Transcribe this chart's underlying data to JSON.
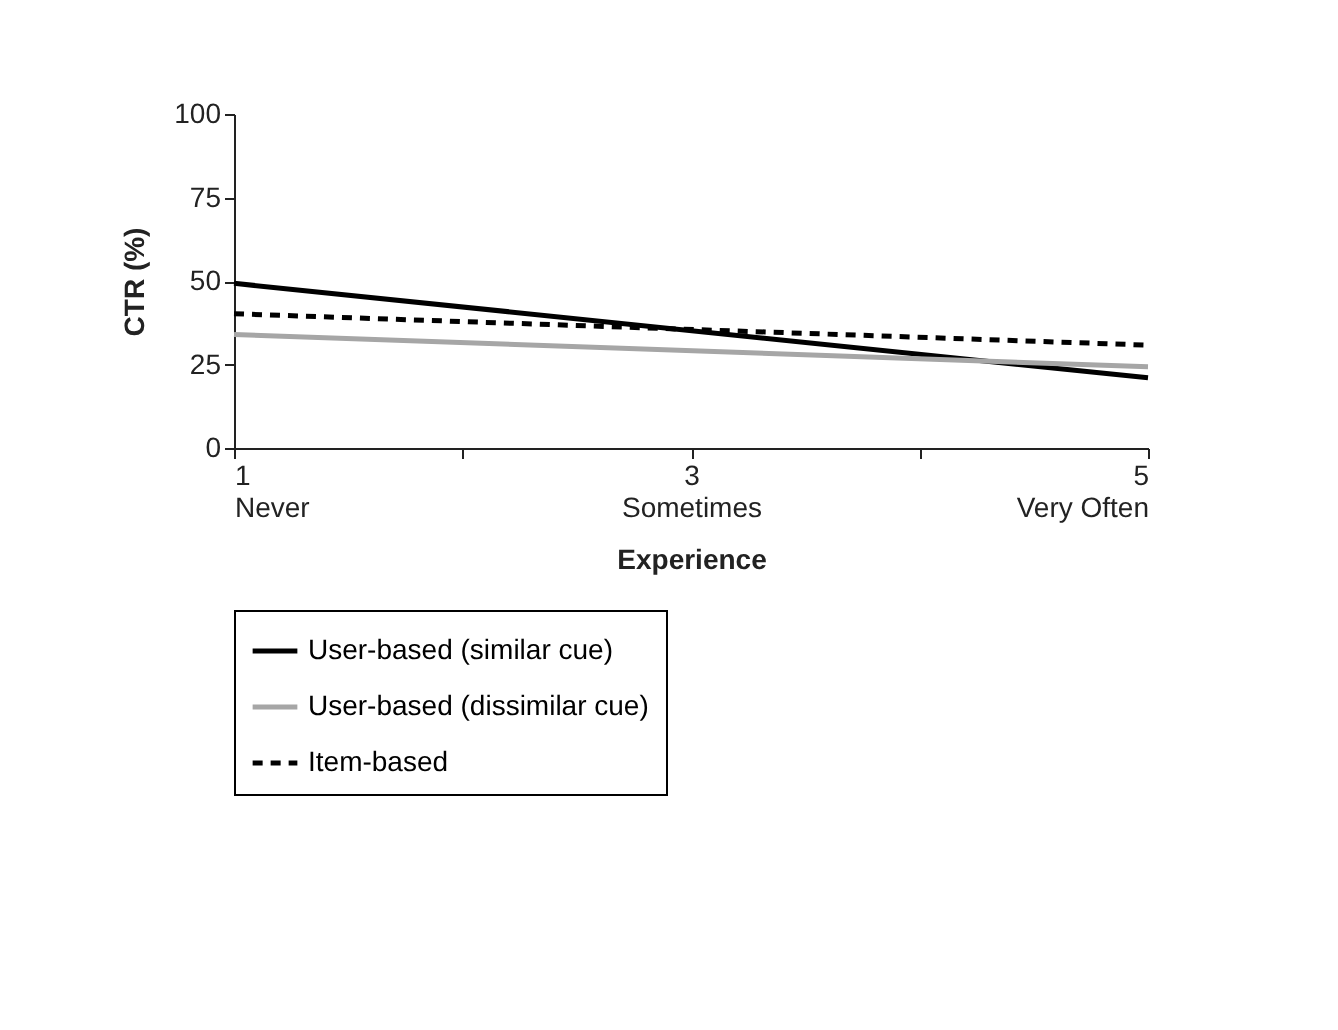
{
  "chart_data": {
    "type": "line",
    "xlabel": "Experience",
    "ylabel": "CTR (%)",
    "x": [
      1,
      5
    ],
    "series": [
      {
        "name": "User-based (similar cue)",
        "color": "#000000",
        "values": [
          49.3,
          21
        ],
        "line_style": "solid"
      },
      {
        "name": "User-based (dissimilar cue)",
        "color": "#a6a6a6",
        "values": [
          34,
          24.3
        ],
        "line_style": "solid"
      },
      {
        "name": "Item-based",
        "color": "#000000",
        "values": [
          40.2,
          30.8
        ],
        "line_style": "dashed"
      }
    ],
    "xlim": [
      1,
      5
    ],
    "xticks": [
      {
        "value": 1,
        "label": "1\nNever"
      },
      {
        "value": 2,
        "label": null
      },
      {
        "value": 3,
        "label": "3\nSometimes"
      },
      {
        "value": 4,
        "label": null
      },
      {
        "value": 5,
        "label": "5\nVery Often"
      }
    ],
    "ylim": [
      0,
      100
    ],
    "yticks": [
      0,
      25,
      50,
      75,
      100
    ],
    "grid": false,
    "legend": "bottom",
    "marker": "none"
  }
}
